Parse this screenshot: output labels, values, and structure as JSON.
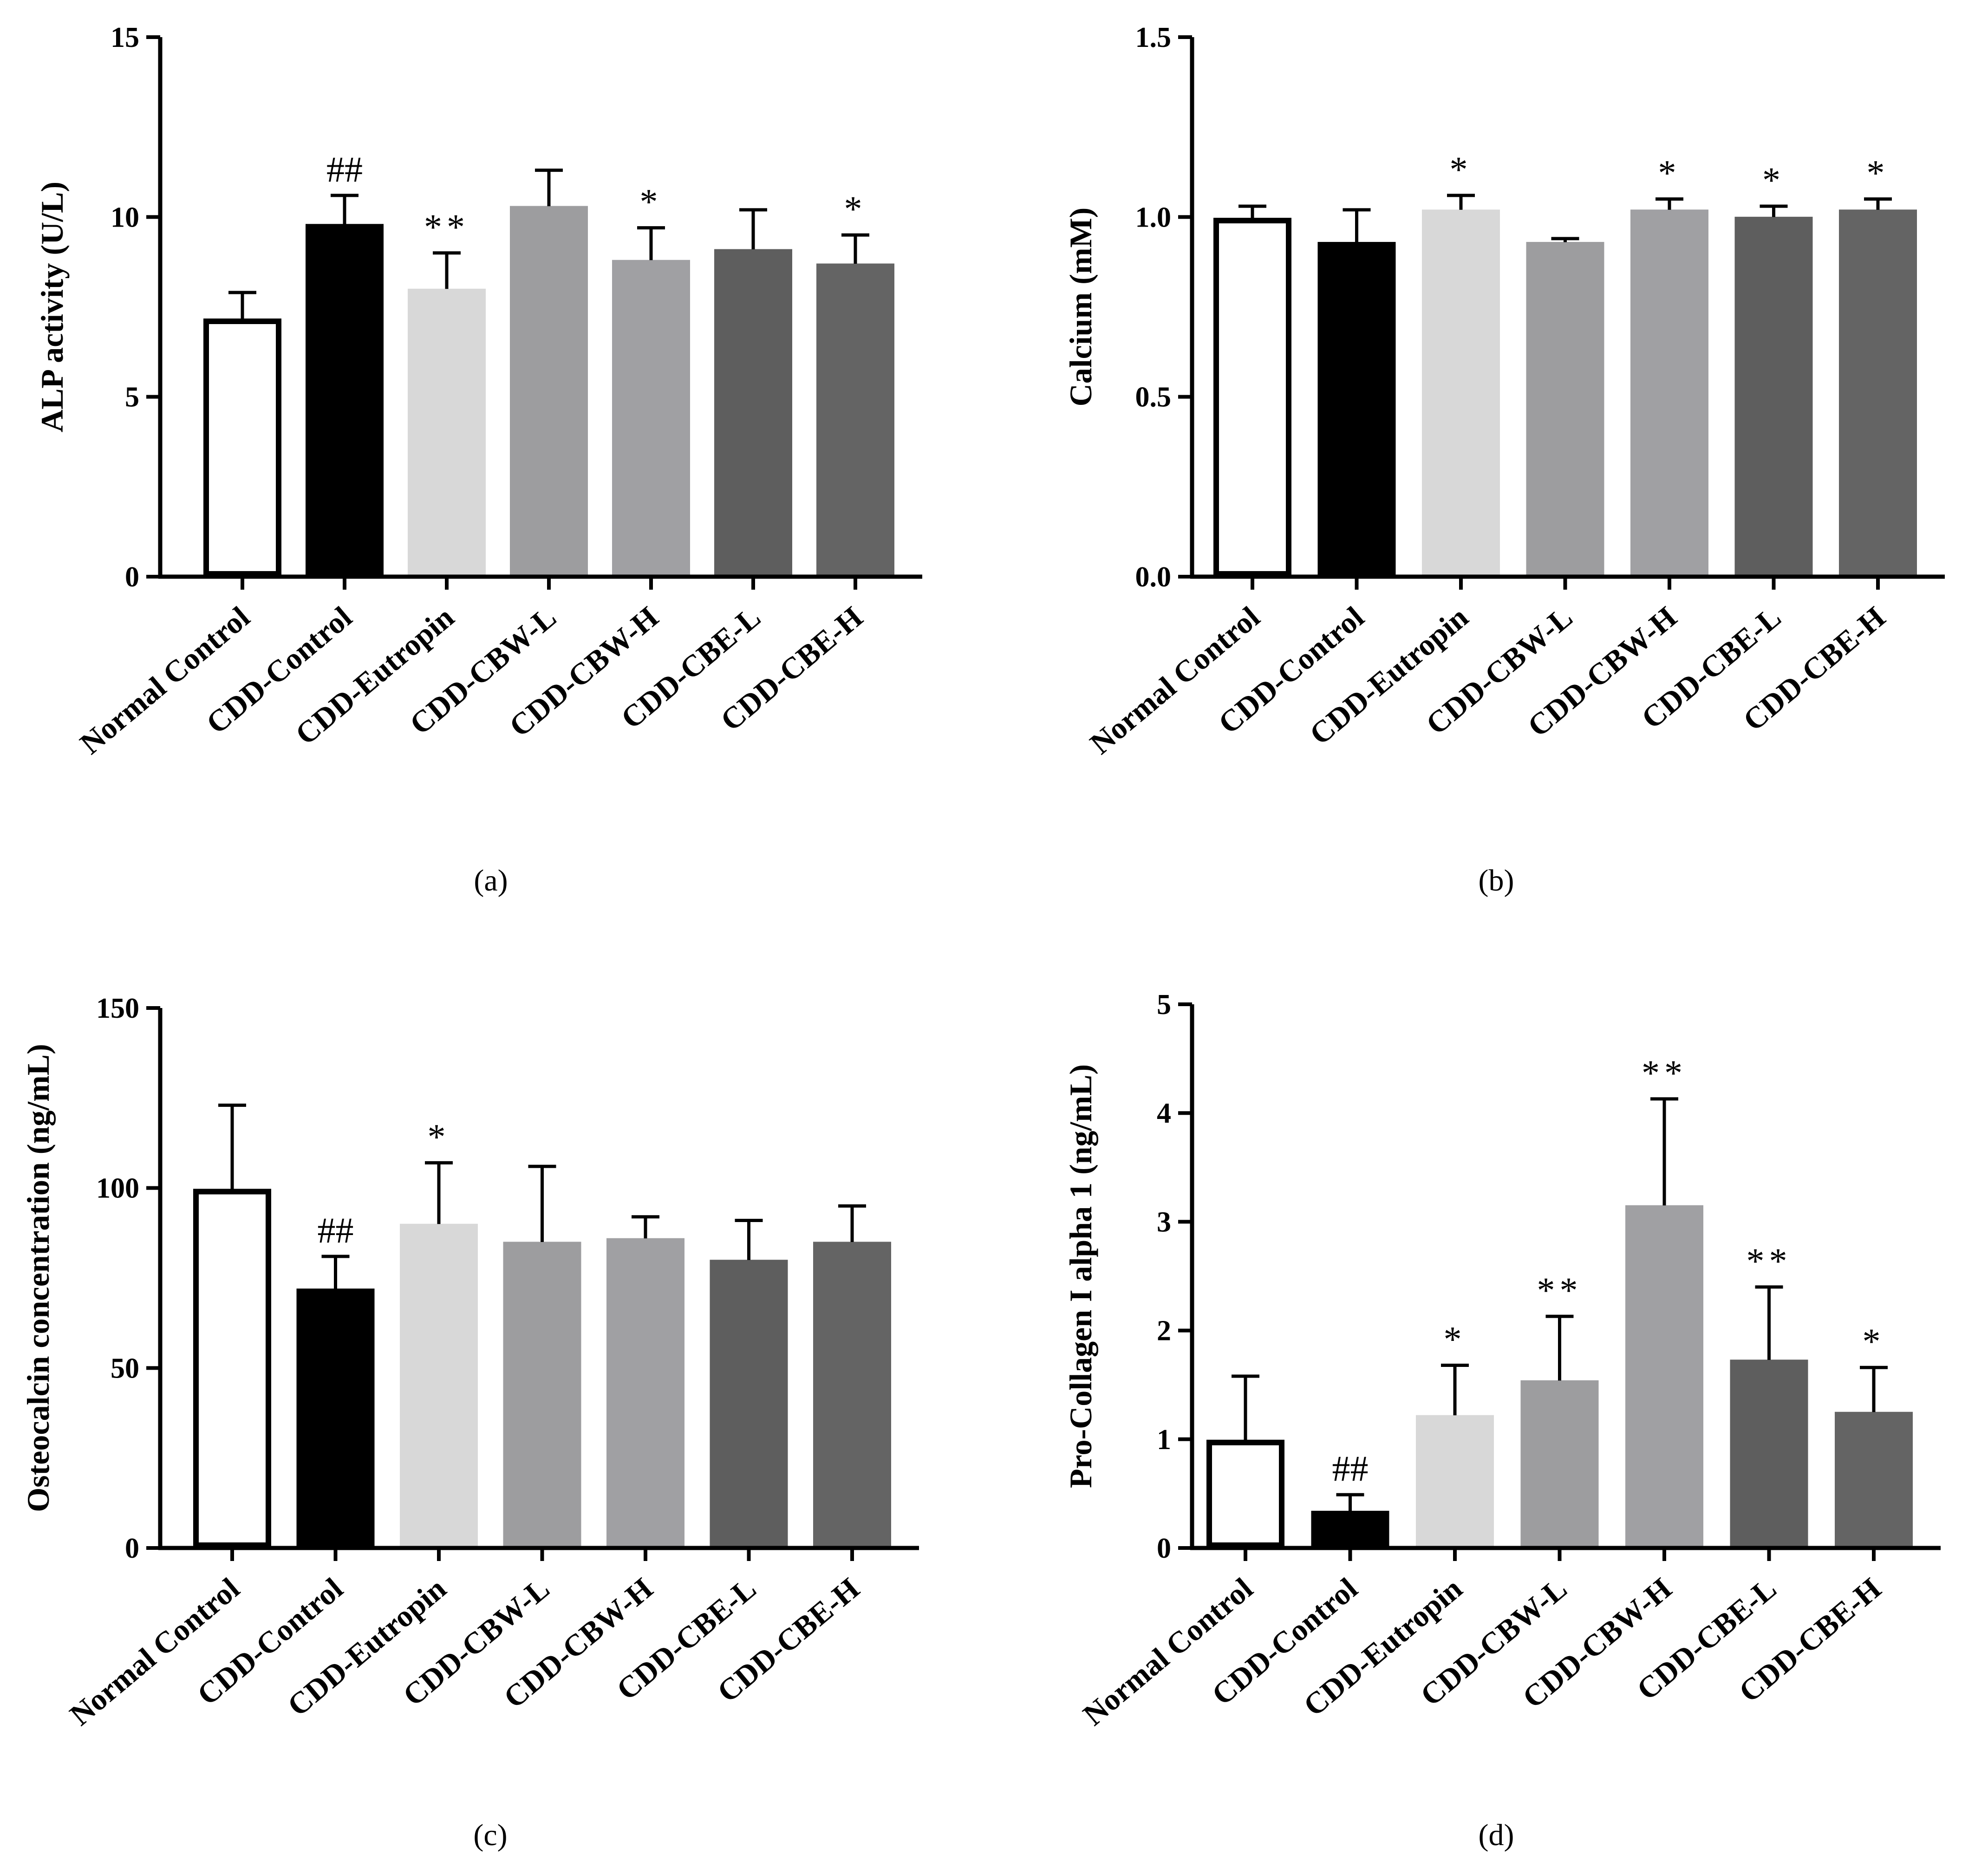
{
  "chart_data": [
    {
      "panel": "(a)",
      "type": "bar",
      "ylabel": "ALP activity (U/L)",
      "ylim": [
        0,
        15
      ],
      "yticks": [
        0,
        5,
        10,
        15
      ],
      "categories": [
        "Normal Control",
        "CDD-Control",
        "CDD-Eutropin",
        "CDD-CBW-L",
        "CDD-CBW-H",
        "CDD-CBE-L",
        "CDD-CBE-H"
      ],
      "values": [
        7.1,
        9.8,
        8.0,
        10.3,
        8.8,
        9.1,
        8.7
      ],
      "errors": [
        0.8,
        0.8,
        1.0,
        1.0,
        0.9,
        1.1,
        0.8
      ],
      "significance": [
        "",
        "##",
        "**",
        "",
        "*",
        "",
        "*"
      ]
    },
    {
      "panel": "(b)",
      "type": "bar",
      "ylabel": "Calcium (mM)",
      "ylim": [
        0,
        1.5
      ],
      "yticks": [
        "0.0",
        "0.5",
        "1.0",
        "1.5"
      ],
      "categories": [
        "Normal Control",
        "CDD-Control",
        "CDD-Eutropin",
        "CDD-CBW-L",
        "CDD-CBW-H",
        "CDD-CBE-L",
        "CDD-CBE-H"
      ],
      "values": [
        0.99,
        0.93,
        1.02,
        0.93,
        1.02,
        1.0,
        1.02
      ],
      "errors": [
        0.04,
        0.09,
        0.04,
        0.01,
        0.03,
        0.03,
        0.03
      ],
      "significance": [
        "",
        "",
        "*",
        "",
        "*",
        "*",
        "*"
      ]
    },
    {
      "panel": "(c)",
      "type": "bar",
      "ylabel": "Osteocalcin concentration (ng/mL)",
      "ylim": [
        0,
        150
      ],
      "yticks": [
        0,
        50,
        100,
        150
      ],
      "categories": [
        "Normal Control",
        "CDD-Control",
        "CDD-Eutropin",
        "CDD-CBW-L",
        "CDD-CBW-H",
        "CDD-CBE-L",
        "CDD-CBE-H"
      ],
      "values": [
        99,
        72,
        90,
        85,
        86,
        80,
        85
      ],
      "errors": [
        24,
        9,
        17,
        21,
        6,
        11,
        10
      ],
      "significance": [
        "",
        "##",
        "*",
        "",
        "",
        "",
        ""
      ]
    },
    {
      "panel": "(d)",
      "type": "bar",
      "ylabel": "Pro-Collagen I alpha 1 (ng/mL)",
      "ylim": [
        0,
        5
      ],
      "yticks": [
        0,
        1,
        2,
        3,
        4,
        5
      ],
      "categories": [
        "Normal Control",
        "CDD-Control",
        "CDD-Eutropin",
        "CDD-CBW-L",
        "CDD-CBW-H",
        "CDD-CBE-L",
        "CDD-CBE-H"
      ],
      "values": [
        0.97,
        0.34,
        1.22,
        1.54,
        3.15,
        1.73,
        1.25
      ],
      "errors": [
        0.61,
        0.15,
        0.46,
        0.59,
        0.98,
        0.67,
        0.41
      ],
      "significance": [
        "",
        "##",
        "*",
        "**",
        "**",
        "**",
        "*"
      ]
    }
  ],
  "colors": {
    "axis": "#000000",
    "bar_fills": [
      "#ffffff",
      "#000000",
      "#d8d8d8",
      "#9d9d9f",
      "#a0a0a3",
      "#5e5e5e",
      "#646464"
    ],
    "bar_strokes": [
      "#000000",
      "#000000",
      "#d8d8d8",
      "#9d9d9f",
      "#a0a0a3",
      "#5e5e5e",
      "#646464"
    ]
  }
}
